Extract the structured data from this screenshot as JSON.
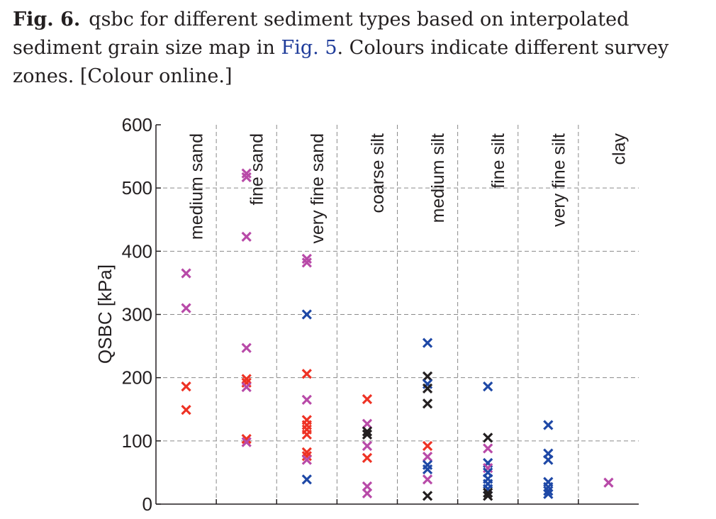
{
  "caption": {
    "label": "Fig. 6.",
    "text_before": "qsbc for different sediment types based on interpolated sediment grain size map in",
    "ref": "Fig. 5",
    "text_after": ". Colours indicate different survey zones. [Colour online.]"
  },
  "colors": {
    "magenta": "#b84aa8",
    "red": "#ee3224",
    "blue": "#1e48a6",
    "black": "#231f20",
    "axis": "#231f20",
    "grid": "#8a8a8a"
  },
  "chart_data": {
    "type": "scatter",
    "title": "",
    "ylabel": "QSBC [kPa]",
    "xlabel": "",
    "ylim": [
      0,
      600
    ],
    "yticks": [
      0,
      100,
      200,
      300,
      400,
      500,
      600
    ],
    "grid": true,
    "categories": [
      "medium sand",
      "fine sand",
      "very fine sand",
      "coarse silt",
      "medium silt",
      "fine silt",
      "very fine silt",
      "clay"
    ],
    "points": [
      {
        "category": 0,
        "y": 365,
        "color": "magenta"
      },
      {
        "category": 0,
        "y": 310,
        "color": "magenta"
      },
      {
        "category": 0,
        "y": 186,
        "color": "red"
      },
      {
        "category": 0,
        "y": 149,
        "color": "red"
      },
      {
        "category": 1,
        "y": 523,
        "color": "magenta"
      },
      {
        "category": 1,
        "y": 517,
        "color": "magenta"
      },
      {
        "category": 1,
        "y": 423,
        "color": "magenta"
      },
      {
        "category": 1,
        "y": 247,
        "color": "magenta"
      },
      {
        "category": 1,
        "y": 198,
        "color": "red"
      },
      {
        "category": 1,
        "y": 192,
        "color": "red"
      },
      {
        "category": 1,
        "y": 185,
        "color": "magenta"
      },
      {
        "category": 1,
        "y": 103,
        "color": "red"
      },
      {
        "category": 1,
        "y": 98,
        "color": "magenta"
      },
      {
        "category": 2,
        "y": 388,
        "color": "magenta"
      },
      {
        "category": 2,
        "y": 382,
        "color": "magenta"
      },
      {
        "category": 2,
        "y": 300,
        "color": "blue"
      },
      {
        "category": 2,
        "y": 206,
        "color": "red"
      },
      {
        "category": 2,
        "y": 165,
        "color": "magenta"
      },
      {
        "category": 2,
        "y": 133,
        "color": "red"
      },
      {
        "category": 2,
        "y": 125,
        "color": "red"
      },
      {
        "category": 2,
        "y": 118,
        "color": "red"
      },
      {
        "category": 2,
        "y": 110,
        "color": "red"
      },
      {
        "category": 2,
        "y": 82,
        "color": "red"
      },
      {
        "category": 2,
        "y": 76,
        "color": "red"
      },
      {
        "category": 2,
        "y": 70,
        "color": "magenta"
      },
      {
        "category": 2,
        "y": 39,
        "color": "blue"
      },
      {
        "category": 3,
        "y": 166,
        "color": "red"
      },
      {
        "category": 3,
        "y": 127,
        "color": "magenta"
      },
      {
        "category": 3,
        "y": 115,
        "color": "black"
      },
      {
        "category": 3,
        "y": 110,
        "color": "black"
      },
      {
        "category": 3,
        "y": 92,
        "color": "magenta"
      },
      {
        "category": 3,
        "y": 73,
        "color": "red"
      },
      {
        "category": 3,
        "y": 28,
        "color": "magenta"
      },
      {
        "category": 3,
        "y": 17,
        "color": "magenta"
      },
      {
        "category": 4,
        "y": 255,
        "color": "blue"
      },
      {
        "category": 4,
        "y": 202,
        "color": "black"
      },
      {
        "category": 4,
        "y": 190,
        "color": "blue"
      },
      {
        "category": 4,
        "y": 183,
        "color": "black"
      },
      {
        "category": 4,
        "y": 159,
        "color": "black"
      },
      {
        "category": 4,
        "y": 92,
        "color": "red"
      },
      {
        "category": 4,
        "y": 75,
        "color": "magenta"
      },
      {
        "category": 4,
        "y": 62,
        "color": "blue"
      },
      {
        "category": 4,
        "y": 55,
        "color": "blue"
      },
      {
        "category": 4,
        "y": 39,
        "color": "magenta"
      },
      {
        "category": 4,
        "y": 13,
        "color": "black"
      },
      {
        "category": 5,
        "y": 186,
        "color": "blue"
      },
      {
        "category": 5,
        "y": 105,
        "color": "black"
      },
      {
        "category": 5,
        "y": 88,
        "color": "magenta"
      },
      {
        "category": 5,
        "y": 65,
        "color": "blue"
      },
      {
        "category": 5,
        "y": 57,
        "color": "magenta"
      },
      {
        "category": 5,
        "y": 50,
        "color": "blue"
      },
      {
        "category": 5,
        "y": 40,
        "color": "blue"
      },
      {
        "category": 5,
        "y": 32,
        "color": "blue"
      },
      {
        "category": 5,
        "y": 24,
        "color": "blue"
      },
      {
        "category": 5,
        "y": 18,
        "color": "black"
      },
      {
        "category": 5,
        "y": 13,
        "color": "black"
      },
      {
        "category": 6,
        "y": 125,
        "color": "blue"
      },
      {
        "category": 6,
        "y": 80,
        "color": "blue"
      },
      {
        "category": 6,
        "y": 70,
        "color": "blue"
      },
      {
        "category": 6,
        "y": 35,
        "color": "blue"
      },
      {
        "category": 6,
        "y": 27,
        "color": "blue"
      },
      {
        "category": 6,
        "y": 21,
        "color": "blue"
      },
      {
        "category": 6,
        "y": 16,
        "color": "blue"
      },
      {
        "category": 7,
        "y": 34,
        "color": "magenta"
      }
    ]
  }
}
